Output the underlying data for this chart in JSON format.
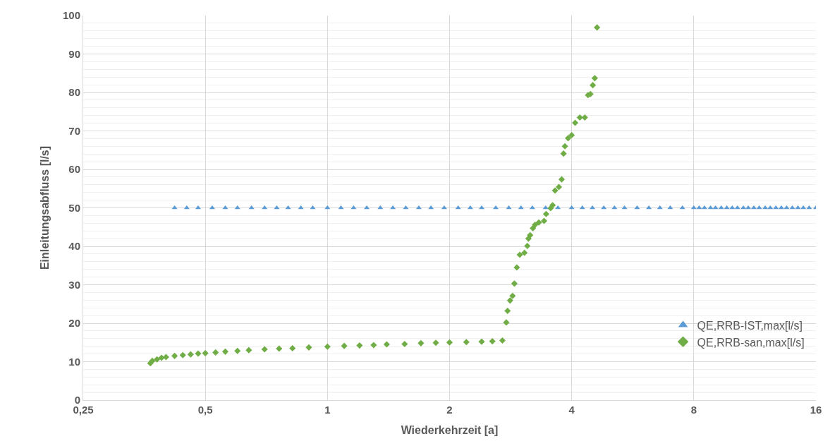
{
  "chart_data": {
    "type": "scatter",
    "xlabel": "Wiederkehrzeit [a]",
    "ylabel": "Einleitungsabfluss [l/s]",
    "log": "x",
    "grid": true,
    "legend": "bottom right",
    "xlim": [
      0.25,
      16
    ],
    "xticks": [
      {
        "value": 0.25,
        "label": "0,25"
      },
      {
        "value": 0.5,
        "label": "0,5"
      },
      1,
      2,
      4,
      8,
      16
    ],
    "ylim": [
      0,
      100
    ],
    "yticks": [
      0,
      10,
      20,
      30,
      40,
      50,
      60,
      70,
      80,
      90,
      100
    ],
    "series": [
      {
        "name": "QE,RRB-IST,max[l/s]",
        "color": "#5b9bd5",
        "marker": "triangle",
        "x": [
          0.42,
          0.45,
          0.48,
          0.52,
          0.56,
          0.6,
          0.65,
          0.7,
          0.75,
          0.8,
          0.86,
          0.92,
          1,
          1.08,
          1.16,
          1.25,
          1.35,
          1.45,
          1.56,
          1.68,
          1.8,
          1.94,
          2.1,
          2.25,
          2.4,
          2.6,
          2.8,
          3,
          3.2,
          3.45,
          3.7,
          4,
          4.25,
          4.5,
          4.8,
          5.1,
          5.4,
          5.8,
          6.2,
          6.6,
          7,
          7.5,
          8,
          8.25,
          8.5,
          8.8,
          9.05,
          9.35,
          9.65,
          9.95,
          10.25,
          10.6,
          10.9,
          11.25,
          11.6,
          12,
          12.35,
          12.75,
          13.15,
          13.55,
          14,
          14.45,
          14.9,
          15.4,
          16
        ],
        "values": [
          50,
          50,
          50,
          50,
          50,
          50,
          50,
          50,
          50,
          50,
          50,
          50,
          50,
          50,
          50,
          50,
          50,
          50,
          50,
          50,
          50,
          50,
          50,
          50,
          50,
          50,
          50,
          50,
          50,
          50,
          50,
          50,
          50,
          50,
          50,
          50,
          50,
          50,
          50,
          50,
          50,
          50,
          50,
          50,
          50,
          50,
          50,
          50,
          50,
          50,
          50,
          50,
          50,
          50,
          50,
          50,
          50,
          50,
          50,
          50,
          50,
          50,
          50,
          50,
          50
        ]
      },
      {
        "name": "QE,RRB-san,max[l/s]",
        "color": "#70ad47",
        "marker": "diamond",
        "x": [
          0.366,
          0.37,
          0.38,
          0.39,
          0.4,
          0.42,
          0.44,
          0.46,
          0.48,
          0.5,
          0.53,
          0.56,
          0.6,
          0.64,
          0.7,
          0.76,
          0.82,
          0.9,
          1,
          1.1,
          1.2,
          1.3,
          1.4,
          1.55,
          1.7,
          1.85,
          2,
          2.2,
          2.4,
          2.55,
          2.7,
          2.76,
          2.78,
          2.82,
          2.86,
          2.89,
          2.93,
          2.98,
          3.06,
          3.11,
          3.13,
          3.16,
          3.21,
          3.25,
          3.32,
          3.42,
          3.46,
          3.55,
          3.59,
          3.64,
          3.72,
          3.78,
          3.82,
          3.85,
          3.92,
          4.0,
          4.08,
          4.19,
          4.31,
          4.39,
          4.45,
          4.51,
          4.56,
          4.62
        ],
        "values": [
          9.6,
          10.2,
          10.6,
          11,
          11.2,
          11.5,
          11.7,
          11.9,
          12.1,
          12.2,
          12.4,
          12.6,
          12.8,
          13,
          13.2,
          13.4,
          13.5,
          13.7,
          13.9,
          14.1,
          14.2,
          14.3,
          14.5,
          14.6,
          14.8,
          14.9,
          15,
          15.1,
          15.2,
          15.3,
          15.5,
          20.2,
          23.2,
          25.9,
          27.1,
          30.3,
          34.5,
          37.8,
          38.3,
          40.1,
          42,
          42.9,
          44.7,
          45.6,
          46.2,
          46.6,
          48.4,
          49.9,
          50.7,
          54.5,
          55.4,
          57.4,
          64.1,
          66,
          68.1,
          68.9,
          72.1,
          73.5,
          73.5,
          79.3,
          79.6,
          81.9,
          83.7,
          96.9
        ]
      }
    ]
  }
}
